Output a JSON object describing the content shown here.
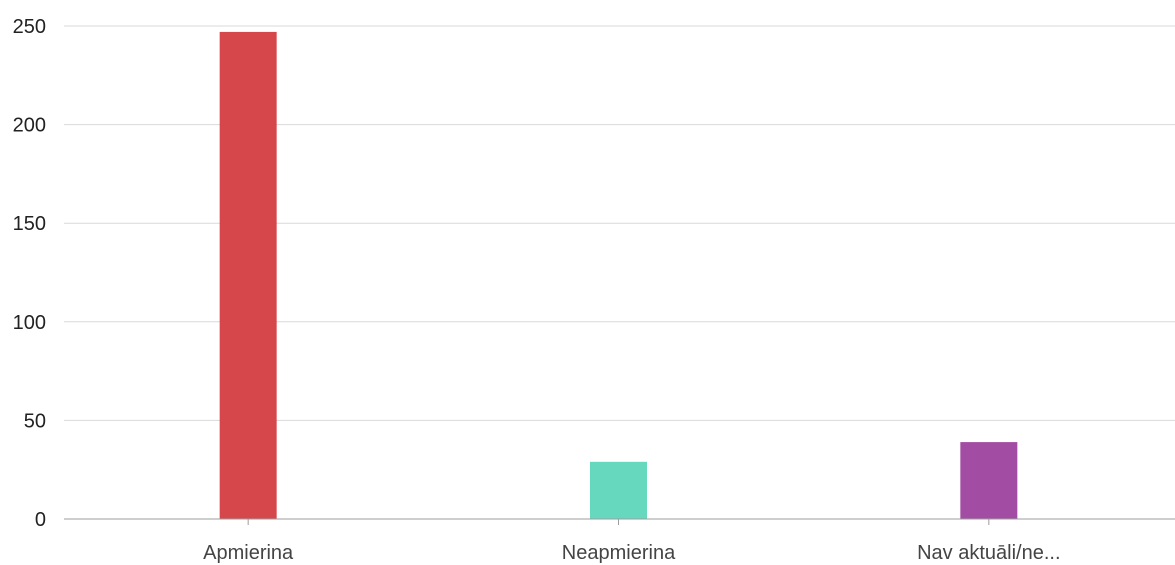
{
  "chart_data": {
    "type": "bar",
    "categories": [
      "Apmierina",
      "Neapmierina",
      "Nav aktuāli/ne..."
    ],
    "values": [
      247,
      29,
      39
    ],
    "colors": [
      "#d6474c",
      "#66d8be",
      "#a24da3"
    ],
    "ylim": [
      0,
      250
    ],
    "yticks": [
      0,
      50,
      100,
      150,
      200,
      250
    ],
    "ytick_labels": [
      "0",
      "50",
      "100",
      "150",
      "200",
      "250"
    ],
    "grid": true,
    "title": "",
    "xlabel": "",
    "ylabel": ""
  }
}
